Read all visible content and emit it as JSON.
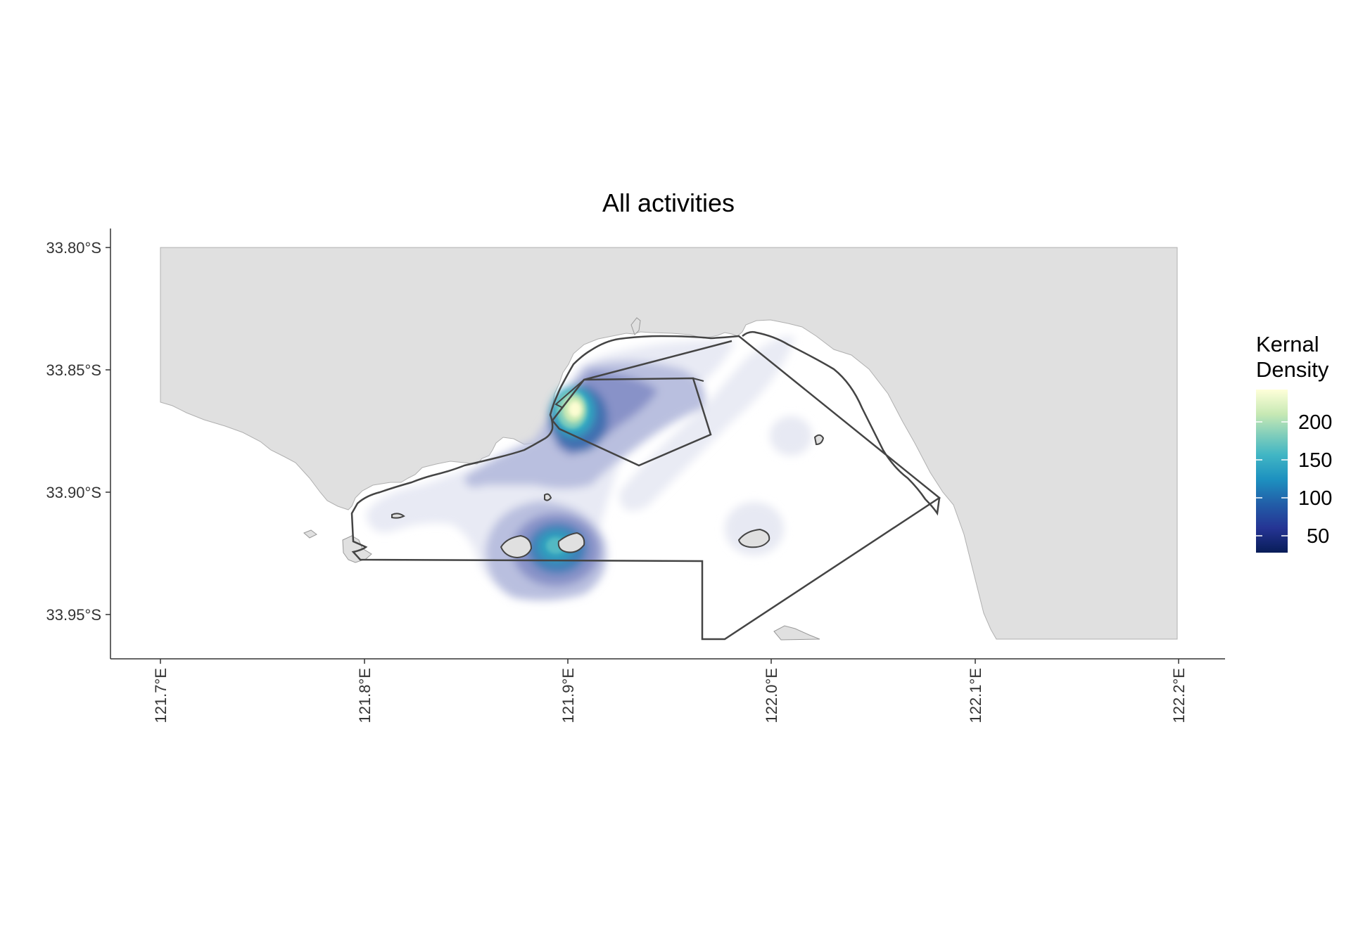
{
  "title": "All activities",
  "chart_data": {
    "type": "heatmap",
    "title": "All activities",
    "x_ticks": [
      "121.7°E",
      "121.8°E",
      "121.9°E",
      "122.0°E",
      "122.1°E",
      "122.2°E"
    ],
    "y_ticks": [
      "33.80°S",
      "33.85°S",
      "33.90°S",
      "33.95°S"
    ],
    "xlim": [
      121.7,
      122.2
    ],
    "ylim": [
      -33.96,
      -33.8
    ],
    "legend": {
      "title_line1": "Kernal",
      "title_line2": "Density",
      "ticks": [
        "200",
        "150",
        "100",
        "50"
      ],
      "range": [
        20,
        245
      ],
      "placement": "right",
      "colors": [
        "#081d58",
        "#253494",
        "#225ea8",
        "#1d91c0",
        "#41b6c4",
        "#7fcdbb",
        "#c7e9b4",
        "#ffffd9"
      ]
    },
    "hotspots": [
      {
        "lon": 121.905,
        "lat": -33.866,
        "peak": 245
      },
      {
        "lon": 121.895,
        "lat": -33.918,
        "peak": 130
      },
      {
        "lon": 121.935,
        "lat": -33.875,
        "peak": 60
      },
      {
        "lon": 122.015,
        "lat": -33.878,
        "peak": 20
      },
      {
        "lon": 121.99,
        "lat": -33.915,
        "peak": 20
      },
      {
        "lon": 121.83,
        "lat": -33.907,
        "peak": 20
      }
    ],
    "grid": false,
    "colors": {
      "land": "#e0e0e0",
      "boundary": "#444444",
      "sea": "#ffffff"
    }
  }
}
